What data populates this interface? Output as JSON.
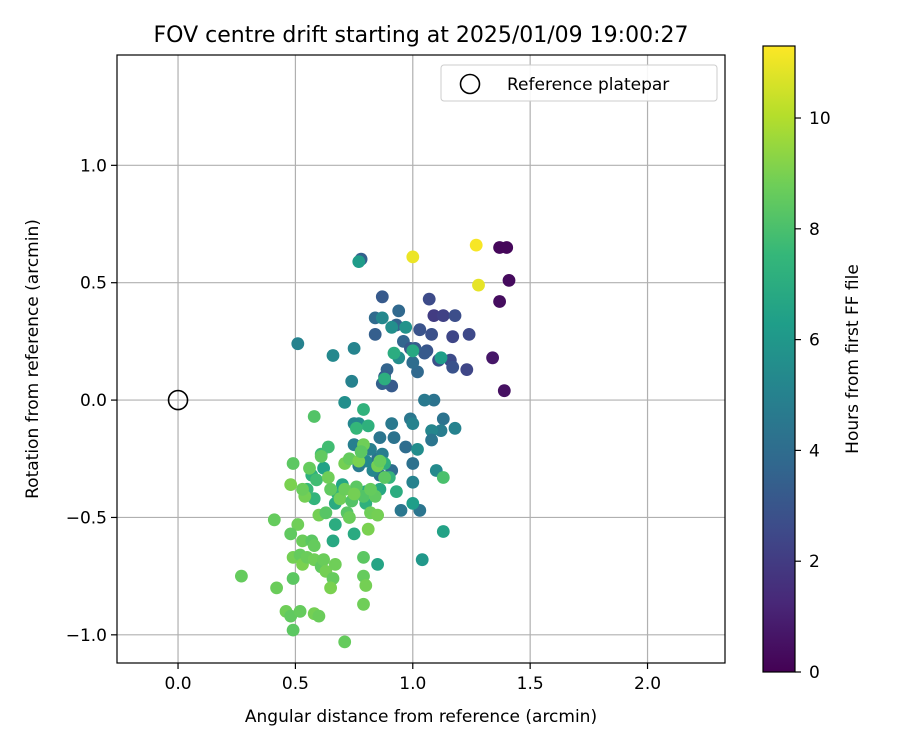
{
  "chart_data": {
    "type": "scatter",
    "title": "FOV centre drift starting at 2025/01/09 19:00:27",
    "xlabel": "Angular distance from reference (arcmin)",
    "ylabel": "Rotation from reference (arcmin)",
    "xlim": [
      -0.26,
      2.33
    ],
    "ylim": [
      -1.12,
      1.47
    ],
    "xticks": [
      0.0,
      0.5,
      1.0,
      1.5,
      2.0
    ],
    "xtick_labels": [
      "0.0",
      "0.5",
      "1.0",
      "1.5",
      "2.0"
    ],
    "yticks": [
      -1.0,
      -0.5,
      0.0,
      0.5,
      1.0
    ],
    "ytick_labels": [
      "−1.0",
      "−0.5",
      "0.0",
      "0.5",
      "1.0"
    ],
    "grid": true,
    "legend": {
      "position": "upper right",
      "entries": [
        "Reference platepar"
      ]
    },
    "reference_point": {
      "x": 0.0,
      "y": 0.0,
      "label": "Reference platepar"
    },
    "colorbar": {
      "label": "Hours from first FF file",
      "colormap": "viridis",
      "min": 0,
      "max": 11.3,
      "ticks": [
        0,
        2,
        4,
        6,
        8,
        10
      ],
      "tick_labels": [
        "0",
        "2",
        "4",
        "6",
        "8",
        "10"
      ]
    },
    "point_columns": [
      "x",
      "y",
      "hours"
    ],
    "points": [
      [
        1.27,
        0.66,
        11.2
      ],
      [
        1.0,
        0.61,
        11.0
      ],
      [
        1.28,
        0.49,
        10.9
      ],
      [
        1.37,
        0.65,
        0.2
      ],
      [
        1.4,
        0.65,
        0.2
      ],
      [
        1.41,
        0.51,
        0.3
      ],
      [
        1.37,
        0.42,
        0.4
      ],
      [
        1.34,
        0.18,
        0.7
      ],
      [
        1.39,
        0.04,
        0.5
      ],
      [
        1.09,
        0.36,
        2.0
      ],
      [
        1.13,
        0.36,
        2.2
      ],
      [
        1.18,
        0.36,
        2.7
      ],
      [
        1.17,
        0.27,
        2.4
      ],
      [
        1.24,
        0.28,
        2.5
      ],
      [
        1.07,
        0.43,
        2.6
      ],
      [
        1.08,
        0.28,
        2.8
      ],
      [
        1.03,
        0.3,
        2.9
      ],
      [
        1.06,
        0.21,
        3.0
      ],
      [
        1.11,
        0.17,
        2.8
      ],
      [
        1.16,
        0.17,
        2.6
      ],
      [
        1.17,
        0.14,
        2.9
      ],
      [
        1.23,
        0.13,
        2.4
      ],
      [
        1.05,
        0.2,
        3.2
      ],
      [
        0.87,
        0.44,
        3.2
      ],
      [
        0.78,
        0.6,
        3.5
      ],
      [
        0.94,
        0.38,
        3.8
      ],
      [
        0.84,
        0.35,
        3.9
      ],
      [
        0.93,
        0.32,
        3.6
      ],
      [
        0.84,
        0.28,
        3.4
      ],
      [
        0.96,
        0.25,
        3.7
      ],
      [
        0.99,
        0.22,
        3.1
      ],
      [
        1.01,
        0.22,
        3.3
      ],
      [
        0.89,
        0.13,
        3.6
      ],
      [
        0.88,
        0.1,
        3.4
      ],
      [
        0.91,
        0.06,
        3.2
      ],
      [
        0.87,
        0.07,
        3.5
      ],
      [
        1.02,
        0.12,
        3.8
      ],
      [
        1.0,
        0.16,
        4.0
      ],
      [
        1.09,
        0.0,
        4.3
      ],
      [
        1.05,
        0.0,
        4.6
      ],
      [
        1.13,
        -0.08,
        4.3
      ],
      [
        1.12,
        -0.13,
        4.8
      ],
      [
        1.18,
        -0.12,
        5.0
      ],
      [
        1.08,
        -0.13,
        5.2
      ],
      [
        1.08,
        -0.17,
        4.4
      ],
      [
        1.0,
        -0.27,
        4.2
      ],
      [
        0.97,
        -0.2,
        4.0
      ],
      [
        0.99,
        -0.08,
        4.5
      ],
      [
        1.0,
        -0.1,
        5.0
      ],
      [
        0.92,
        -0.16,
        4.3
      ],
      [
        0.91,
        -0.1,
        4.6
      ],
      [
        0.86,
        -0.16,
        4.4
      ],
      [
        0.85,
        -0.25,
        4.2
      ],
      [
        0.87,
        -0.23,
        4.8
      ],
      [
        0.91,
        -0.3,
        4.0
      ],
      [
        0.86,
        -0.32,
        4.2
      ],
      [
        0.82,
        -0.21,
        4.9
      ],
      [
        1.02,
        -0.21,
        5.5
      ],
      [
        1.03,
        -0.47,
        4.4
      ],
      [
        0.95,
        -0.47,
        4.5
      ],
      [
        1.0,
        -0.35,
        5.0
      ],
      [
        1.1,
        -0.3,
        5.4
      ],
      [
        0.83,
        -0.3,
        5.2
      ],
      [
        0.8,
        -0.26,
        5.3
      ],
      [
        0.77,
        -0.28,
        4.7
      ],
      [
        0.75,
        -0.19,
        4.9
      ],
      [
        0.77,
        -0.1,
        5.5
      ],
      [
        0.75,
        -0.1,
        5.2
      ],
      [
        0.71,
        -0.01,
        5.6
      ],
      [
        0.74,
        0.08,
        5.0
      ],
      [
        0.75,
        0.22,
        5.1
      ],
      [
        0.66,
        0.19,
        5.3
      ],
      [
        0.51,
        0.24,
        5.0
      ],
      [
        0.77,
        0.59,
        6.2
      ],
      [
        0.91,
        0.31,
        5.6
      ],
      [
        0.97,
        0.31,
        5.8
      ],
      [
        0.94,
        0.18,
        5.5
      ],
      [
        0.87,
        0.35,
        5.3
      ],
      [
        1.04,
        -0.68,
        6.0
      ],
      [
        1.13,
        -0.56,
        6.5
      ],
      [
        1.0,
        -0.44,
        6.3
      ],
      [
        1.12,
        0.18,
        6.3
      ],
      [
        0.92,
        0.2,
        7.0
      ],
      [
        1.0,
        0.21,
        6.8
      ],
      [
        0.88,
        0.09,
        7.1
      ],
      [
        0.81,
        -0.11,
        7.2
      ],
      [
        0.79,
        -0.04,
        7.3
      ],
      [
        0.76,
        -0.12,
        7.5
      ],
      [
        0.75,
        -0.57,
        6.9
      ],
      [
        0.85,
        -0.7,
        6.6
      ],
      [
        0.93,
        -0.39,
        7.0
      ],
      [
        0.86,
        -0.38,
        6.8
      ],
      [
        0.9,
        -0.33,
        7.4
      ],
      [
        0.88,
        -0.27,
        7.2
      ],
      [
        0.8,
        -0.39,
        7.0
      ],
      [
        0.8,
        -0.44,
        7.2
      ],
      [
        0.67,
        -0.44,
        6.9
      ],
      [
        0.67,
        -0.53,
        7.0
      ],
      [
        0.66,
        -0.6,
        6.8
      ],
      [
        0.68,
        -0.4,
        7.4
      ],
      [
        0.7,
        -0.36,
        6.7
      ],
      [
        0.62,
        -0.29,
        6.5
      ],
      [
        0.57,
        -0.32,
        7.2
      ],
      [
        0.58,
        -0.42,
        7.4
      ],
      [
        0.59,
        -0.34,
        7.8
      ],
      [
        0.55,
        -0.38,
        7.6
      ],
      [
        0.61,
        -0.23,
        7.7
      ],
      [
        0.64,
        -0.2,
        7.8
      ],
      [
        1.13,
        -0.33,
        8.0
      ],
      [
        0.58,
        -0.07,
        8.2
      ],
      [
        0.61,
        -0.24,
        8.5
      ],
      [
        0.64,
        -0.33,
        8.8
      ],
      [
        0.56,
        -0.29,
        8.6
      ],
      [
        0.49,
        -0.27,
        8.4
      ],
      [
        0.48,
        -0.36,
        9.0
      ],
      [
        0.54,
        -0.41,
        8.9
      ],
      [
        0.53,
        -0.38,
        8.7
      ],
      [
        0.51,
        -0.53,
        8.8
      ],
      [
        0.48,
        -0.57,
        8.5
      ],
      [
        0.53,
        -0.6,
        8.7
      ],
      [
        0.57,
        -0.6,
        8.4
      ],
      [
        0.58,
        -0.62,
        8.6
      ],
      [
        0.6,
        -0.49,
        8.9
      ],
      [
        0.63,
        -0.48,
        8.3
      ],
      [
        0.65,
        -0.38,
        8.5
      ],
      [
        0.69,
        -0.42,
        8.8
      ],
      [
        0.71,
        -0.27,
        8.9
      ],
      [
        0.73,
        -0.25,
        8.6
      ],
      [
        0.77,
        -0.26,
        9.0
      ],
      [
        0.76,
        -0.37,
        8.4
      ],
      [
        0.74,
        -0.43,
        8.2
      ],
      [
        0.72,
        -0.48,
        8.3
      ],
      [
        0.71,
        -0.38,
        8.7
      ],
      [
        0.79,
        -0.41,
        8.2
      ],
      [
        0.84,
        -0.41,
        8.5
      ],
      [
        0.82,
        -0.48,
        8.8
      ],
      [
        0.85,
        -0.49,
        8.9
      ],
      [
        0.81,
        -0.55,
        9.0
      ],
      [
        0.82,
        -0.38,
        8.6
      ],
      [
        0.85,
        -0.28,
        8.9
      ],
      [
        0.88,
        -0.33,
        8.4
      ],
      [
        0.86,
        -0.26,
        8.6
      ],
      [
        0.79,
        -0.19,
        8.8
      ],
      [
        0.78,
        -0.22,
        8.4
      ],
      [
        0.49,
        -0.67,
        8.9
      ],
      [
        0.52,
        -0.66,
        8.6
      ],
      [
        0.53,
        -0.7,
        9.0
      ],
      [
        0.55,
        -0.67,
        8.7
      ],
      [
        0.58,
        -0.68,
        8.8
      ],
      [
        0.61,
        -0.71,
        8.5
      ],
      [
        0.62,
        -0.68,
        8.7
      ],
      [
        0.63,
        -0.73,
        8.9
      ],
      [
        0.66,
        -0.76,
        8.6
      ],
      [
        0.65,
        -0.8,
        9.0
      ],
      [
        0.67,
        -0.7,
        8.8
      ],
      [
        0.49,
        -0.76,
        8.4
      ],
      [
        0.42,
        -0.8,
        8.7
      ],
      [
        0.27,
        -0.75,
        8.6
      ],
      [
        0.41,
        -0.51,
        8.6
      ],
      [
        0.46,
        -0.9,
        8.8
      ],
      [
        0.48,
        -0.92,
        8.5
      ],
      [
        0.52,
        -0.9,
        8.6
      ],
      [
        0.58,
        -0.91,
        8.9
      ],
      [
        0.6,
        -0.92,
        8.7
      ],
      [
        0.49,
        -0.98,
        8.4
      ],
      [
        0.71,
        -1.03,
        8.6
      ],
      [
        0.79,
        -0.87,
        8.8
      ],
      [
        0.79,
        -0.75,
        8.6
      ],
      [
        0.79,
        -0.67,
        8.4
      ],
      [
        0.8,
        -0.79,
        8.9
      ],
      [
        0.73,
        -0.5,
        8.7
      ],
      [
        0.75,
        -0.4,
        8.9
      ]
    ]
  }
}
